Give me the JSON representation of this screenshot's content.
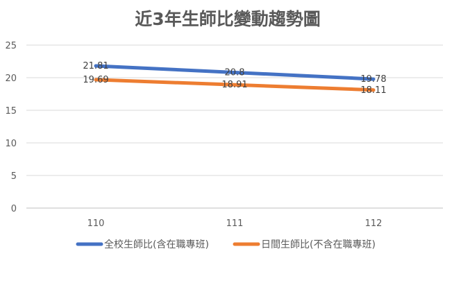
{
  "chart_data": {
    "type": "line",
    "title": "近3年生師比變動趨勢圖",
    "categories": [
      "110",
      "111",
      "112"
    ],
    "ylim": [
      0,
      25
    ],
    "yticks": [
      0,
      5,
      10,
      15,
      20,
      25
    ],
    "grid": true,
    "legend_position": "bottom",
    "series": [
      {
        "name": "全校生師比(含在職專班)",
        "values": [
          21.81,
          20.8,
          19.78
        ],
        "labels": [
          "21.81",
          "20.8",
          "19.78"
        ],
        "color": "#4472c4"
      },
      {
        "name": "日間生師比(不含在職專班)",
        "values": [
          19.69,
          18.91,
          18.11
        ],
        "labels": [
          "19.69",
          "18.91",
          "18.11"
        ],
        "color": "#ed7d31"
      }
    ]
  }
}
